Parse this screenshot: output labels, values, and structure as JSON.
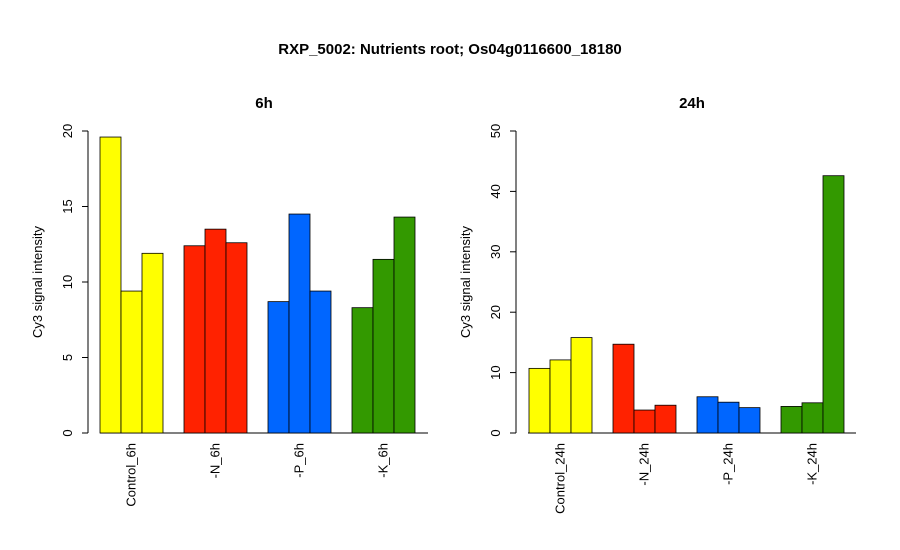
{
  "page_title": "RXP_5002: Nutrients root; Os04g0116600_18180",
  "chart_data": [
    {
      "type": "bar",
      "title": "6h",
      "ylabel": "Cy3 signal intensity",
      "xlabel": "",
      "ylim": [
        0,
        20
      ],
      "yticks": [
        0,
        5,
        10,
        15,
        20
      ],
      "categories": [
        "Control_6h",
        "-N_6h",
        "-P_6h",
        "-K_6h"
      ],
      "colors": [
        "#ffff00",
        "#ff2200",
        "#0066ff",
        "#339900"
      ],
      "values": [
        [
          19.6,
          9.4,
          11.9
        ],
        [
          12.4,
          13.5,
          12.6
        ],
        [
          8.7,
          14.5,
          9.4
        ],
        [
          8.3,
          11.5,
          14.3
        ]
      ]
    },
    {
      "type": "bar",
      "title": "24h",
      "ylabel": "Cy3 signal intensity",
      "xlabel": "",
      "ylim": [
        0,
        50
      ],
      "yticks": [
        0,
        10,
        20,
        30,
        40,
        50
      ],
      "categories": [
        "Control_24h",
        "-N_24h",
        "-P_24h",
        "-K_24h"
      ],
      "colors": [
        "#ffff00",
        "#ff2200",
        "#0066ff",
        "#339900"
      ],
      "values": [
        [
          10.7,
          12.1,
          15.8
        ],
        [
          14.7,
          3.8,
          4.6
        ],
        [
          6.0,
          5.1,
          4.2
        ],
        [
          4.4,
          5.0,
          42.6
        ]
      ]
    }
  ]
}
